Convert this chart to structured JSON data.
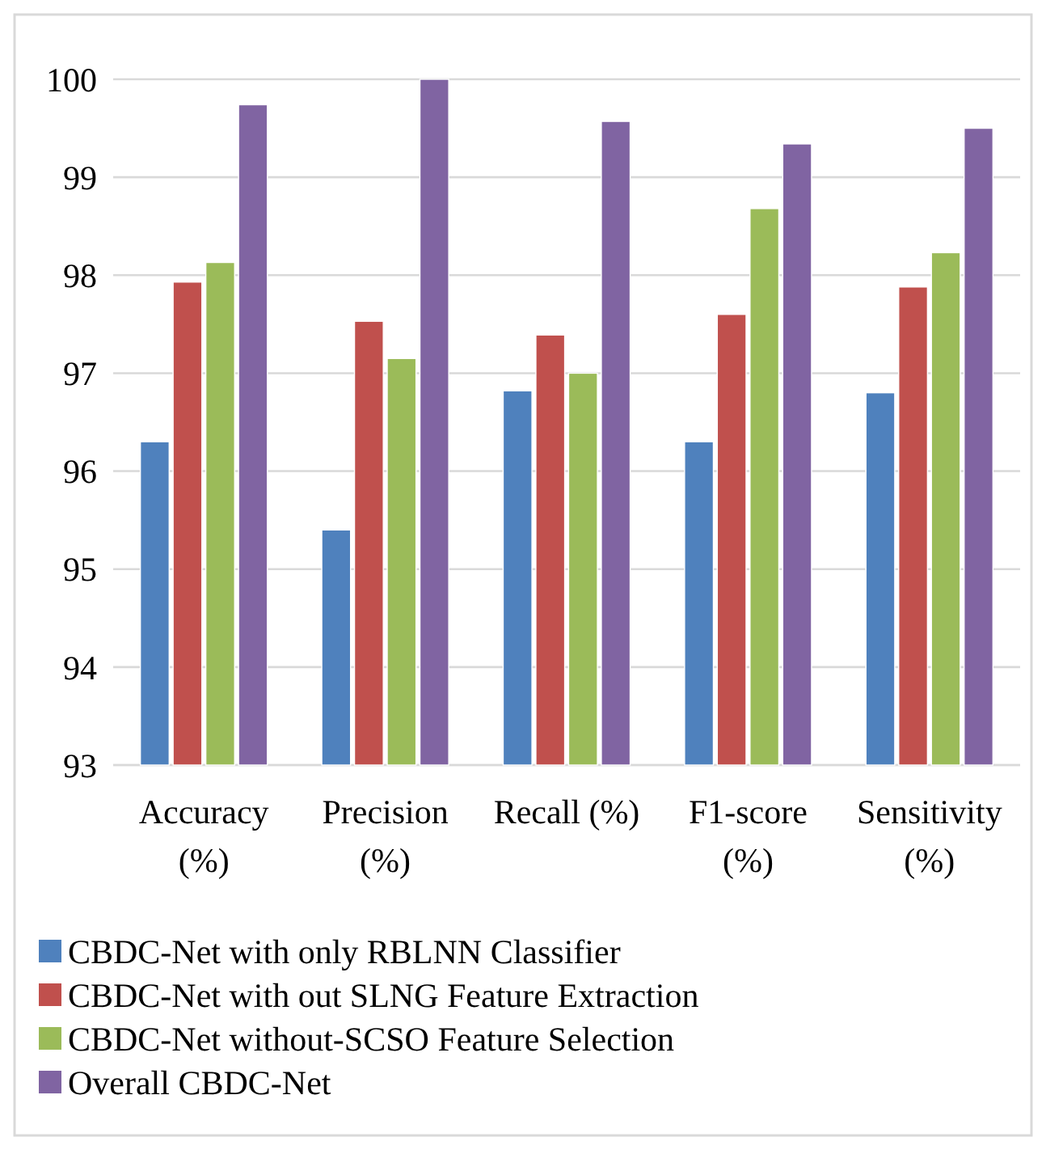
{
  "chart_data": {
    "type": "bar",
    "categories": [
      "Accuracy (%)",
      "Precision (%)",
      "Recall (%)",
      "F1-score (%)",
      "Sensitivity (%)"
    ],
    "series": [
      {
        "name": "CBDC-Net with only RBLNN Classifier",
        "color": "#4f81bd",
        "values": [
          96.3,
          95.4,
          96.82,
          96.3,
          96.8
        ]
      },
      {
        "name": "CBDC-Net with out SLNG Feature Extraction",
        "color": "#c0504d",
        "values": [
          97.93,
          97.53,
          97.39,
          97.6,
          97.88
        ]
      },
      {
        "name": "CBDC-Net without-SCSO Feature Selection",
        "color": "#9bbb59",
        "values": [
          98.13,
          97.15,
          97.0,
          98.68,
          98.23
        ]
      },
      {
        "name": "Overall CBDC-Net",
        "color": "#8064a2",
        "values": [
          99.74,
          100,
          99.57,
          99.34,
          99.5
        ]
      }
    ],
    "ylim": [
      93,
      100
    ],
    "yticks": [
      93,
      94,
      95,
      96,
      97,
      98,
      99,
      100
    ],
    "grid": "y",
    "legend": "bottom"
  }
}
